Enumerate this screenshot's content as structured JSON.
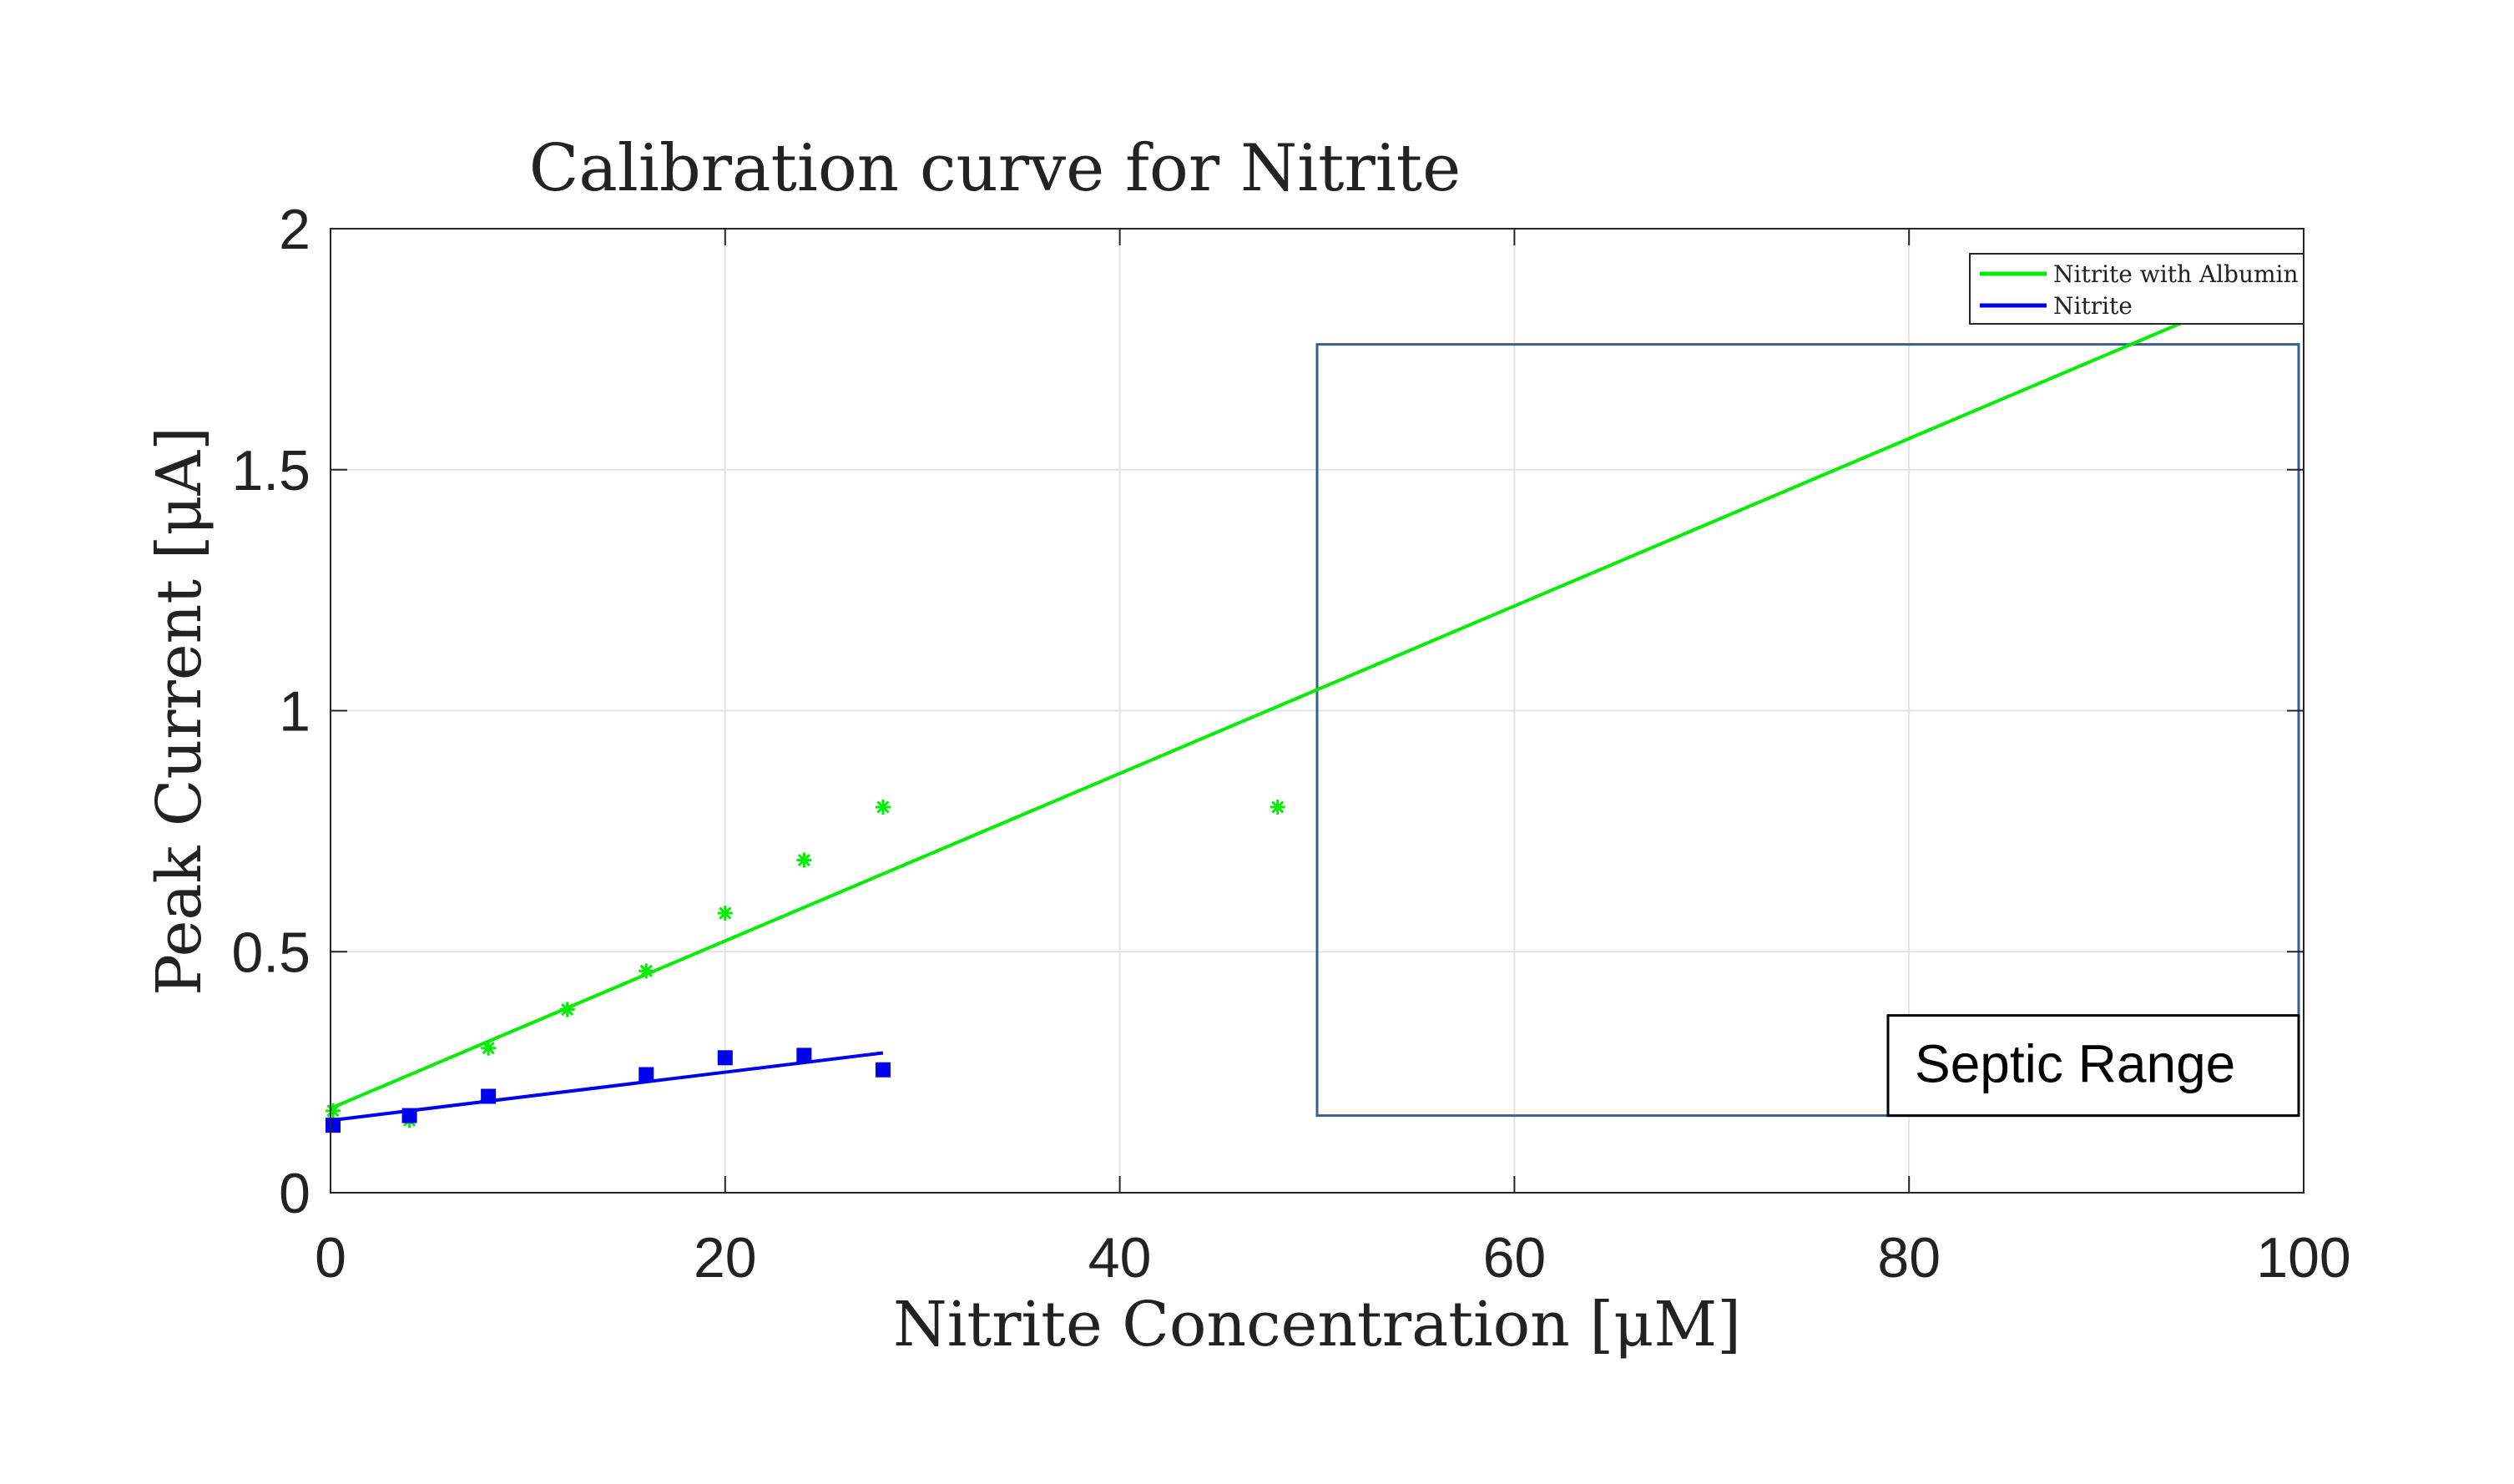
{
  "chart_data": {
    "type": "scatter",
    "title": "Calibration curve for Nitrite",
    "xlabel": "Nitrite Concentration [μM]",
    "ylabel": "Peak Current [μA]",
    "xlim": [
      0,
      100
    ],
    "ylim": [
      0,
      2
    ],
    "x_ticks": [
      0,
      20,
      40,
      60,
      80,
      100
    ],
    "y_ticks": [
      0,
      0.5,
      1,
      1.5,
      2
    ],
    "x_tick_labels": [
      "0",
      "20",
      "40",
      "60",
      "80",
      "100"
    ],
    "y_tick_labels": [
      "0",
      "0.5",
      "1",
      "1.5",
      "2"
    ],
    "grid": true,
    "legend_position": "top-right",
    "series": [
      {
        "name": "Nitrite with Albumin",
        "color": "#00ee00",
        "marker": "asterisk",
        "points": [
          {
            "x": 0,
            "y": 0.17
          },
          {
            "x": 4,
            "y": 0.15
          },
          {
            "x": 8,
            "y": 0.3
          },
          {
            "x": 12,
            "y": 0.38
          },
          {
            "x": 16,
            "y": 0.46
          },
          {
            "x": 20,
            "y": 0.58
          },
          {
            "x": 24,
            "y": 0.69
          },
          {
            "x": 28,
            "y": 0.8
          },
          {
            "x": 48,
            "y": 0.8
          }
        ],
        "fit_line": {
          "x": [
            0,
            100
          ],
          "y": [
            0.175,
            1.912
          ]
        }
      },
      {
        "name": "Nitrite",
        "color": "#0000ee",
        "marker": "square",
        "points": [
          {
            "x": 0,
            "y": 0.14
          },
          {
            "x": 4,
            "y": 0.16
          },
          {
            "x": 8,
            "y": 0.2
          },
          {
            "x": 16,
            "y": 0.245
          },
          {
            "x": 20,
            "y": 0.28
          },
          {
            "x": 24,
            "y": 0.285
          },
          {
            "x": 28,
            "y": 0.255
          }
        ],
        "fit_line": {
          "x": [
            0,
            28
          ],
          "y": [
            0.15,
            0.29
          ]
        }
      }
    ],
    "annotations": [
      {
        "type": "region",
        "x_range": [
          50,
          100
        ],
        "y_range": [
          0.16,
          1.76
        ],
        "color": "#3b5f8f",
        "label": "Septic Range"
      }
    ]
  }
}
